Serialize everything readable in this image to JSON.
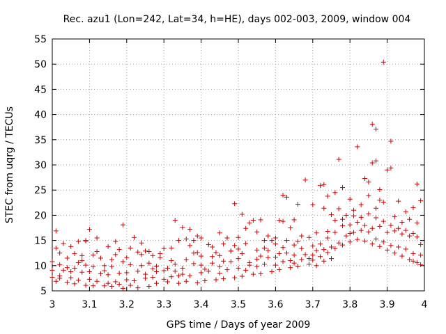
{
  "chart_data": {
    "type": "scatter",
    "title": "Rec. azu1 (Lon=242, Lat=34, h=HE), days 002-003, 2009, window 004",
    "xlabel": "GPS time / Days of year 2009",
    "ylabel": "STEC from uqrg / TECUs",
    "xlim": [
      3.0,
      4.0
    ],
    "ylim": [
      5,
      55
    ],
    "xticks": [
      3.0,
      3.1,
      3.2,
      3.3,
      3.4,
      3.5,
      3.6,
      3.7,
      3.8,
      3.9,
      4.0
    ],
    "xtick_labels": [
      "3",
      "3.1",
      "3.2",
      "3.3",
      "3.4",
      "3.5",
      "3.6",
      "3.7",
      "3.8",
      "3.9",
      "4"
    ],
    "yticks": [
      5,
      10,
      15,
      20,
      25,
      30,
      35,
      40,
      45,
      50,
      55
    ],
    "ytick_labels": [
      "5",
      "10",
      "15",
      "20",
      "25",
      "30",
      "35",
      "40",
      "45",
      "50",
      "55"
    ],
    "grid": true,
    "marker": "+",
    "color": "#cc0000",
    "series": [
      {
        "values": [
          [
            3.01,
            16.9
          ],
          [
            3.03,
            14.4
          ],
          [
            3.05,
            13.8
          ],
          [
            3.07,
            14.8
          ],
          [
            3.09,
            15.0
          ],
          [
            3.1,
            17.2
          ],
          [
            3.12,
            15.5
          ],
          [
            3.15,
            13.8
          ],
          [
            3.17,
            14.8
          ],
          [
            3.19,
            18.1
          ],
          [
            3.22,
            15.6
          ],
          [
            3.24,
            14.5
          ],
          [
            3.26,
            12.8
          ],
          [
            3.3,
            13.4
          ],
          [
            3.33,
            19.0
          ],
          [
            3.35,
            17.6
          ],
          [
            3.37,
            17.2
          ],
          [
            3.39,
            15.9
          ],
          [
            3.42,
            14.2
          ],
          [
            3.45,
            16.5
          ],
          [
            3.47,
            15.5
          ],
          [
            3.49,
            22.3
          ],
          [
            3.51,
            20.2
          ],
          [
            3.53,
            18.5
          ],
          [
            3.54,
            19.0
          ],
          [
            3.56,
            19.1
          ],
          [
            3.58,
            15.9
          ],
          [
            3.6,
            15.5
          ],
          [
            3.61,
            19.0
          ],
          [
            3.62,
            24.0
          ],
          [
            3.63,
            23.6
          ],
          [
            3.65,
            19.1
          ],
          [
            3.66,
            22.2
          ],
          [
            3.68,
            27.0
          ],
          [
            3.7,
            22.1
          ],
          [
            3.72,
            25.9
          ],
          [
            3.73,
            26.1
          ],
          [
            3.74,
            23.8
          ],
          [
            3.76,
            24.5
          ],
          [
            3.77,
            31.1
          ],
          [
            3.78,
            25.5
          ],
          [
            3.8,
            23.2
          ],
          [
            3.82,
            33.6
          ],
          [
            3.84,
            27.3
          ],
          [
            3.85,
            26.6
          ],
          [
            3.86,
            30.4
          ],
          [
            3.86,
            38.1
          ],
          [
            3.87,
            30.8
          ],
          [
            3.87,
            37.1
          ],
          [
            3.88,
            25.1
          ],
          [
            3.89,
            50.4
          ],
          [
            3.9,
            29.0
          ],
          [
            3.91,
            29.4
          ],
          [
            3.91,
            34.7
          ],
          [
            3.93,
            22.8
          ],
          [
            3.95,
            20.7
          ],
          [
            3.97,
            21.5
          ],
          [
            3.98,
            26.2
          ],
          [
            3.99,
            22.9
          ],
          [
            3.01,
            13.5
          ],
          [
            3.02,
            12.5
          ],
          [
            3.04,
            11.5
          ],
          [
            3.06,
            12.4
          ],
          [
            3.08,
            11.0
          ],
          [
            3.09,
            14.9
          ],
          [
            3.11,
            12.1
          ],
          [
            3.13,
            11.5
          ],
          [
            3.16,
            11.2
          ],
          [
            3.18,
            13.2
          ],
          [
            3.2,
            11.6
          ],
          [
            3.23,
            12.7
          ],
          [
            3.25,
            12.9
          ],
          [
            3.27,
            12.0
          ],
          [
            3.29,
            11.6
          ],
          [
            3.32,
            13.5
          ],
          [
            3.34,
            15.0
          ],
          [
            3.36,
            15.3
          ],
          [
            3.38,
            15.0
          ],
          [
            3.4,
            15.5
          ],
          [
            3.43,
            13.7
          ],
          [
            3.46,
            14.3
          ],
          [
            3.48,
            12.9
          ],
          [
            3.5,
            15.6
          ],
          [
            3.52,
            17.4
          ],
          [
            3.55,
            16.7
          ],
          [
            3.57,
            15.0
          ],
          [
            3.59,
            15.0
          ],
          [
            3.62,
            18.8
          ],
          [
            3.64,
            17.5
          ],
          [
            3.66,
            14.8
          ],
          [
            3.69,
            15.6
          ],
          [
            3.71,
            16.5
          ],
          [
            3.73,
            21.4
          ],
          [
            3.75,
            20.1
          ],
          [
            3.77,
            21.3
          ],
          [
            3.79,
            20.0
          ],
          [
            3.81,
            19.9
          ],
          [
            3.83,
            22.1
          ],
          [
            3.85,
            20.3
          ],
          [
            3.87,
            21.4
          ],
          [
            3.89,
            22.6
          ],
          [
            3.92,
            19.7
          ],
          [
            3.94,
            18.6
          ],
          [
            3.96,
            19.2
          ],
          [
            3.98,
            18.5
          ],
          [
            3.0,
            10.8
          ],
          [
            3.02,
            10.2
          ],
          [
            3.04,
            9.6
          ],
          [
            3.07,
            10.6
          ],
          [
            3.09,
            10.1
          ],
          [
            3.11,
            9.8
          ],
          [
            3.14,
            10.0
          ],
          [
            3.16,
            9.8
          ],
          [
            3.19,
            10.8
          ],
          [
            3.21,
            10.2
          ],
          [
            3.24,
            10.0
          ],
          [
            3.26,
            10.5
          ],
          [
            3.28,
            9.9
          ],
          [
            3.31,
            9.5
          ],
          [
            3.33,
            10.3
          ],
          [
            3.36,
            11.2
          ],
          [
            3.38,
            12.5
          ],
          [
            3.4,
            11.9
          ],
          [
            3.43,
            11.8
          ],
          [
            3.45,
            12.0
          ],
          [
            3.48,
            12.9
          ],
          [
            3.5,
            13.3
          ],
          [
            3.52,
            14.4
          ],
          [
            3.55,
            13.1
          ],
          [
            3.57,
            13.5
          ],
          [
            3.6,
            14.3
          ],
          [
            3.62,
            13.6
          ],
          [
            3.65,
            14.1
          ],
          [
            3.67,
            13.4
          ],
          [
            3.7,
            13.9
          ],
          [
            3.72,
            14.3
          ],
          [
            3.74,
            15.5
          ],
          [
            3.76,
            16.6
          ],
          [
            3.78,
            17.9
          ],
          [
            3.8,
            18.1
          ],
          [
            3.82,
            18.6
          ],
          [
            3.84,
            18.0
          ],
          [
            3.86,
            17.4
          ],
          [
            3.88,
            17.8
          ],
          [
            3.9,
            16.6
          ],
          [
            3.92,
            16.9
          ],
          [
            3.94,
            16.3
          ],
          [
            3.96,
            15.9
          ],
          [
            3.98,
            15.7
          ],
          [
            3.0,
            9.1
          ],
          [
            3.03,
            9.1
          ],
          [
            3.05,
            8.8
          ],
          [
            3.08,
            8.7
          ],
          [
            3.1,
            8.8
          ],
          [
            3.13,
            8.4
          ],
          [
            3.15,
            8.2
          ],
          [
            3.18,
            8.5
          ],
          [
            3.2,
            8.6
          ],
          [
            3.23,
            8.9
          ],
          [
            3.25,
            8.3
          ],
          [
            3.28,
            8.8
          ],
          [
            3.3,
            9.0
          ],
          [
            3.33,
            8.9
          ],
          [
            3.35,
            9.5
          ],
          [
            3.38,
            10.4
          ],
          [
            3.4,
            10.1
          ],
          [
            3.43,
            10.5
          ],
          [
            3.45,
            9.8
          ],
          [
            3.48,
            10.8
          ],
          [
            3.5,
            11.4
          ],
          [
            3.53,
            10.6
          ],
          [
            3.55,
            11.3
          ],
          [
            3.58,
            11.6
          ],
          [
            3.6,
            11.7
          ],
          [
            3.63,
            12.5
          ],
          [
            3.65,
            12.1
          ],
          [
            3.68,
            12.2
          ],
          [
            3.7,
            12.1
          ],
          [
            3.73,
            13.2
          ],
          [
            3.75,
            13.7
          ],
          [
            3.77,
            14.5
          ],
          [
            3.79,
            15.9
          ],
          [
            3.81,
            16.6
          ],
          [
            3.83,
            17.0
          ],
          [
            3.85,
            16.7
          ],
          [
            3.87,
            15.3
          ],
          [
            3.89,
            14.7
          ],
          [
            3.91,
            14.0
          ],
          [
            3.93,
            13.7
          ],
          [
            3.95,
            13.3
          ],
          [
            3.97,
            12.4
          ],
          [
            3.99,
            12.1
          ],
          [
            3.0,
            7.7
          ],
          [
            3.02,
            7.5
          ],
          [
            3.05,
            7.6
          ],
          [
            3.07,
            7.1
          ],
          [
            3.1,
            7.3
          ],
          [
            3.12,
            6.9
          ],
          [
            3.15,
            6.5
          ],
          [
            3.17,
            6.8
          ],
          [
            3.2,
            7.2
          ],
          [
            3.22,
            7.0
          ],
          [
            3.25,
            7.5
          ],
          [
            3.27,
            7.7
          ],
          [
            3.3,
            7.3
          ],
          [
            3.32,
            7.8
          ],
          [
            3.35,
            8.3
          ],
          [
            3.37,
            8.0
          ],
          [
            3.4,
            8.6
          ],
          [
            3.42,
            8.9
          ],
          [
            3.45,
            8.5
          ],
          [
            3.47,
            9.2
          ],
          [
            3.5,
            9.5
          ],
          [
            3.52,
            9.1
          ],
          [
            3.55,
            9.8
          ],
          [
            3.57,
            10.3
          ],
          [
            3.6,
            10.1
          ],
          [
            3.62,
            10.8
          ],
          [
            3.65,
            10.5
          ],
          [
            3.67,
            11.2
          ],
          [
            3.7,
            11.1
          ],
          [
            3.72,
            11.8
          ],
          [
            3.74,
            12.6
          ],
          [
            3.76,
            13.4
          ],
          [
            3.78,
            14.1
          ],
          [
            3.8,
            14.7
          ],
          [
            3.82,
            15.2
          ],
          [
            3.84,
            14.9
          ],
          [
            3.86,
            14.3
          ],
          [
            3.88,
            13.8
          ],
          [
            3.9,
            13.1
          ],
          [
            3.92,
            12.5
          ],
          [
            3.94,
            11.9
          ],
          [
            3.96,
            11.2
          ],
          [
            3.98,
            10.6
          ],
          [
            3.01,
            6.9
          ],
          [
            3.04,
            6.7
          ],
          [
            3.06,
            6.4
          ],
          [
            3.09,
            6.1
          ],
          [
            3.11,
            6.0
          ],
          [
            3.14,
            6.0
          ],
          [
            3.16,
            5.9
          ],
          [
            3.18,
            6.3
          ],
          [
            3.19,
            5.5
          ],
          [
            3.21,
            6.1
          ],
          [
            3.23,
            5.6
          ],
          [
            3.26,
            5.9
          ],
          [
            3.28,
            6.5
          ],
          [
            3.31,
            6.8
          ],
          [
            3.34,
            6.5
          ],
          [
            3.36,
            6.9
          ],
          [
            3.39,
            6.6
          ],
          [
            3.41,
            7.0
          ],
          [
            3.44,
            7.2
          ],
          [
            3.46,
            7.4
          ],
          [
            3.49,
            7.6
          ],
          [
            3.51,
            7.9
          ],
          [
            3.54,
            8.3
          ],
          [
            3.56,
            8.4
          ],
          [
            3.59,
            8.8
          ],
          [
            3.61,
            9.2
          ],
          [
            3.64,
            9.6
          ],
          [
            3.66,
            9.9
          ],
          [
            3.69,
            10.3
          ],
          [
            3.71,
            10.0
          ],
          [
            3.73,
            10.9
          ],
          [
            3.75,
            11.4
          ],
          [
            3.97,
            10.9
          ],
          [
            3.99,
            10.2
          ],
          [
            3.02,
            8.0
          ],
          [
            3.06,
            9.5
          ],
          [
            3.08,
            12.0
          ],
          [
            3.12,
            12.8
          ],
          [
            3.14,
            9.0
          ],
          [
            3.17,
            12.2
          ],
          [
            3.21,
            13.5
          ],
          [
            3.24,
            12.2
          ],
          [
            3.27,
            9.4
          ],
          [
            3.29,
            12.4
          ],
          [
            3.32,
            11.0
          ],
          [
            3.34,
            8.0
          ],
          [
            3.37,
            14.0
          ],
          [
            3.39,
            12.6
          ],
          [
            3.41,
            9.3
          ],
          [
            3.44,
            12.6
          ],
          [
            3.46,
            10.9
          ],
          [
            3.49,
            14.0
          ],
          [
            3.51,
            12.4
          ],
          [
            3.53,
            10.1
          ],
          [
            3.56,
            11.9
          ],
          [
            3.58,
            13.0
          ],
          [
            3.61,
            12.4
          ],
          [
            3.63,
            15.0
          ],
          [
            3.64,
            11.0
          ],
          [
            3.67,
            15.9
          ],
          [
            3.69,
            11.4
          ],
          [
            3.71,
            13.0
          ],
          [
            3.74,
            16.8
          ],
          [
            3.76,
            19.0
          ],
          [
            3.78,
            19.2
          ],
          [
            3.8,
            16.4
          ],
          [
            3.81,
            21.0
          ],
          [
            3.83,
            19.6
          ],
          [
            3.85,
            23.9
          ],
          [
            3.87,
            19.5
          ],
          [
            3.88,
            23.0
          ],
          [
            3.89,
            18.8
          ],
          [
            3.91,
            18.0
          ],
          [
            3.93,
            17.4
          ],
          [
            3.95,
            17.0
          ],
          [
            3.97,
            16.4
          ],
          [
            3.99,
            14.2
          ]
        ]
      }
    ]
  }
}
